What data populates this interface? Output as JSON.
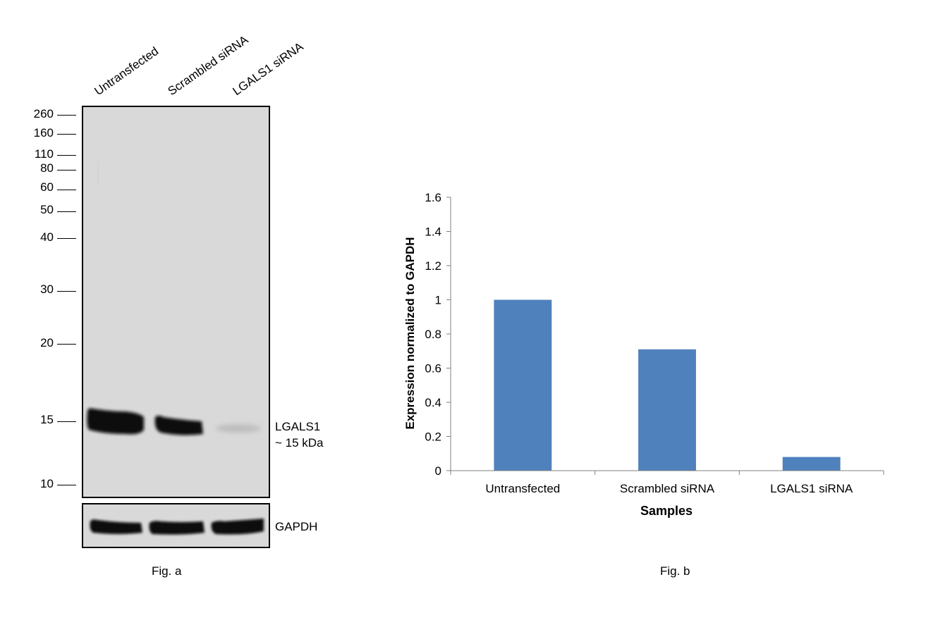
{
  "fig_a": {
    "lane_labels": [
      "Untransfected",
      "Scrambled siRNA",
      "LGALS1 siRNA"
    ],
    "mw_markers": [
      "260",
      "160",
      "110",
      "80",
      "60",
      "50",
      "40",
      "30",
      "20",
      "15",
      "10"
    ],
    "band_label_line1": "LGALS1",
    "band_label_line2": "~ 15 kDa",
    "loading_label": "GAPDH",
    "caption": "Fig. a"
  },
  "fig_b": {
    "caption": "Fig. b"
  },
  "chart_data": {
    "type": "bar",
    "categories": [
      "Untransfected",
      "Scrambled siRNA",
      "LGALS1 siRNA"
    ],
    "values": [
      1.0,
      0.71,
      0.08
    ],
    "title": "",
    "xlabel": "Samples",
    "ylabel": "Expression normalized to GAPDH",
    "ylim": [
      0,
      1.6
    ],
    "yticks": [
      "0",
      "0.2",
      "0.4",
      "0.6",
      "0.8",
      "1",
      "1.2",
      "1.4",
      "1.6"
    ],
    "grid": false,
    "bar_color": "#4f81bd"
  }
}
